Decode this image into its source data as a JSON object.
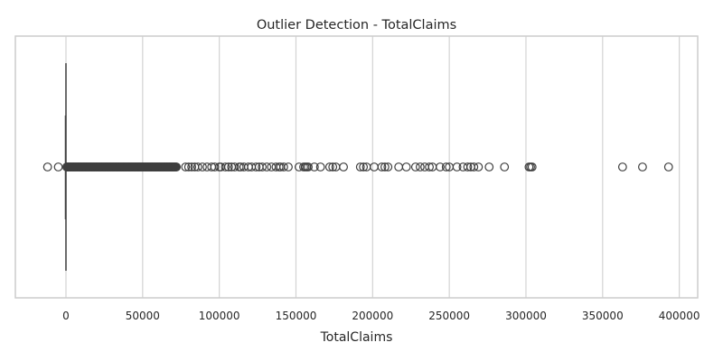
{
  "chart_data": {
    "type": "boxplot",
    "title": "Outlier Detection - TotalClaims",
    "xlabel": "TotalClaims",
    "ylabel": "",
    "xlim": [
      -33000,
      412000
    ],
    "xticks": [
      0,
      50000,
      100000,
      150000,
      200000,
      250000,
      300000,
      350000,
      400000
    ],
    "xtick_labels": [
      "0",
      "50000",
      "100000",
      "150000",
      "200000",
      "250000",
      "300000",
      "350000",
      "400000"
    ],
    "grid": true,
    "box": {
      "q1": 0,
      "median": 0,
      "q3": 0,
      "whisker_low": 0,
      "whisker_high": 0
    },
    "outliers_dense_range": [
      500,
      72000
    ],
    "outliers": [
      -12000,
      -5000,
      78000,
      80000,
      82000,
      84000,
      86000,
      89000,
      92000,
      95000,
      97000,
      100000,
      101000,
      104000,
      106000,
      108000,
      110000,
      113000,
      114000,
      116000,
      119000,
      121000,
      124000,
      126000,
      128000,
      131000,
      134000,
      137000,
      139000,
      140000,
      142000,
      145000,
      152000,
      155000,
      156000,
      157000,
      158000,
      162000,
      166000,
      172000,
      174000,
      176000,
      181000,
      192000,
      194000,
      196000,
      201000,
      206000,
      208000,
      210000,
      217000,
      222000,
      228000,
      231000,
      234000,
      237000,
      239000,
      244000,
      248000,
      250000,
      255000,
      259000,
      262000,
      264000,
      266000,
      269000,
      276000,
      286000,
      302000,
      303000,
      304000,
      363000,
      376000,
      393000
    ],
    "colors": {
      "edge": "#3f3f3f",
      "grid": "#d3d3d3",
      "frame": "#cccccc"
    }
  }
}
